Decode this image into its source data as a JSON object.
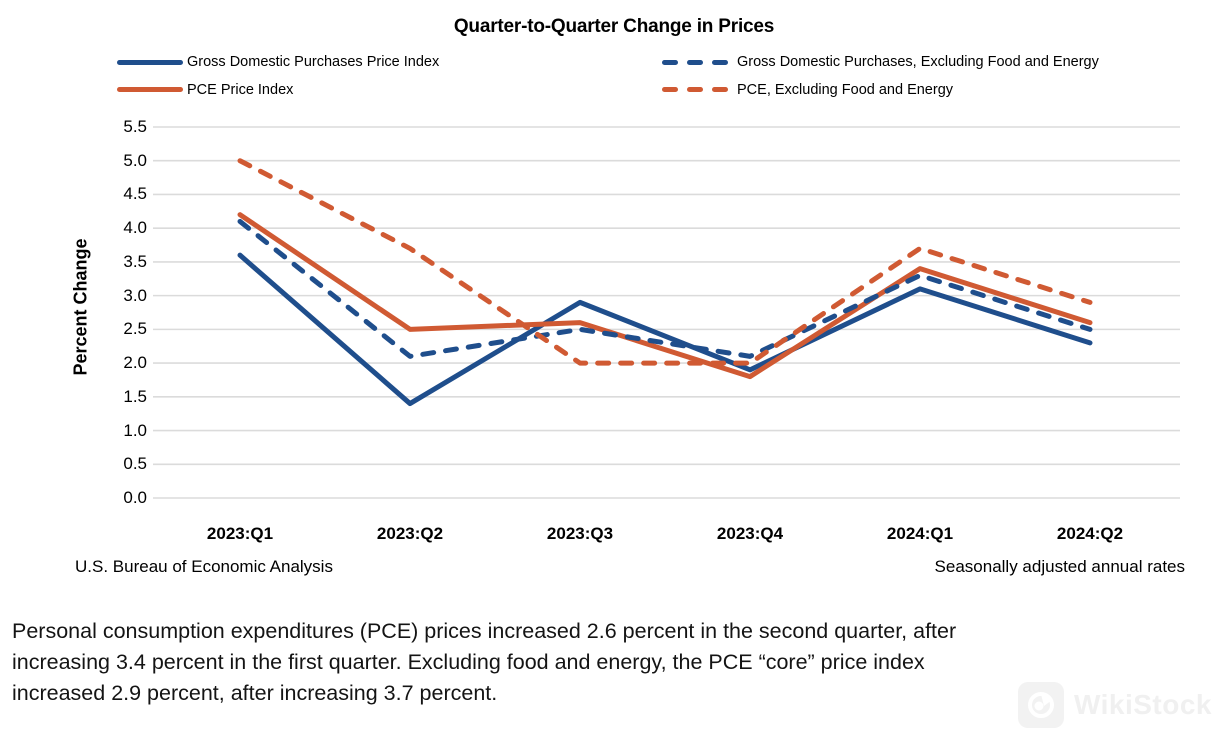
{
  "title": "Quarter-to-Quarter Change in Prices",
  "legend": [
    {
      "label": "Gross Domestic Purchases Price Index",
      "color": "#1F4E8C",
      "style": "solid"
    },
    {
      "label": "PCE Price Index",
      "color": "#D05A33",
      "style": "solid"
    },
    {
      "label": "Gross Domestic Purchases, Excluding Food and Energy",
      "color": "#1F4E8C",
      "style": "dashed"
    },
    {
      "label": "PCE, Excluding Food and Energy",
      "color": "#D05A33",
      "style": "dashed"
    }
  ],
  "chart_data": {
    "type": "line",
    "title": "Quarter-to-Quarter Change in Prices",
    "categories": [
      "2023:Q1",
      "2023:Q2",
      "2023:Q3",
      "2023:Q4",
      "2024:Q1",
      "2024:Q2"
    ],
    "series": [
      {
        "name": "Gross Domestic Purchases Price Index",
        "color": "#1F4E8C",
        "dash": false,
        "values": [
          3.6,
          1.4,
          2.9,
          1.9,
          3.1,
          2.3
        ]
      },
      {
        "name": "PCE Price Index",
        "color": "#D05A33",
        "dash": false,
        "values": [
          4.2,
          2.5,
          2.6,
          1.8,
          3.4,
          2.6
        ]
      },
      {
        "name": "Gross Domestic Purchases, Excluding Food and Energy",
        "color": "#1F4E8C",
        "dash": true,
        "values": [
          4.1,
          2.1,
          2.5,
          2.1,
          3.3,
          2.5
        ]
      },
      {
        "name": "PCE, Excluding Food and Energy",
        "color": "#D05A33",
        "dash": true,
        "values": [
          5.0,
          3.7,
          2.0,
          2.0,
          3.7,
          2.9
        ]
      }
    ],
    "xlabel": "",
    "ylabel": "Percent Change",
    "ylim": [
      0.0,
      5.5
    ],
    "ytick_step": 0.5,
    "grid": true,
    "gridline_color": "#DBDBDB",
    "legend_position": "top"
  },
  "footnotes": {
    "left": "U.S. Bureau of Economic Analysis",
    "right": "Seasonally adjusted annual rates"
  },
  "caption": {
    "lines": [
      "Personal consumption expenditures (PCE) prices increased 2.6 percent in the second quarter, after",
      "increasing 3.4 percent in the first quarter. Excluding food and energy, the PCE “core” price index",
      "increased 2.9 percent, after increasing 3.7 percent."
    ]
  },
  "watermark": {
    "text": "WikiStock"
  }
}
